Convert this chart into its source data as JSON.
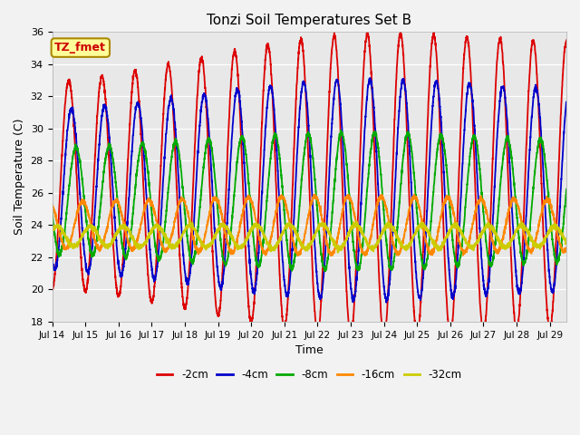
{
  "title": "Tonzi Soil Temperatures Set B",
  "xlabel": "Time",
  "ylabel": "Soil Temperature (C)",
  "ylim": [
    18,
    36
  ],
  "annotation": "TZ_fmet",
  "annotation_color": "#cc0000",
  "annotation_bg": "#ffff99",
  "annotation_border": "#aa8800",
  "plot_bg": "#e8e8e8",
  "fig_bg": "#f2f2f2",
  "legend_entries": [
    "-2cm",
    "-4cm",
    "-8cm",
    "-16cm",
    "-32cm"
  ],
  "line_colors": [
    "#dd0000",
    "#0000cc",
    "#00aa00",
    "#ff8800",
    "#cccc00"
  ],
  "x_tick_labels": [
    "Jul 14",
    "Jul 15",
    "Jul 16",
    "Jul 17",
    "Jul 18",
    "Jul 19",
    "Jul 20",
    "Jul 21",
    "Jul 22",
    "Jul 23",
    "Jul 24",
    "Jul 25",
    "Jul 26",
    "Jul 27",
    "Jul 28",
    "Jul 29"
  ],
  "n_points": 3600,
  "days": 15.5,
  "mean_2cm": 26.5,
  "mean_4cm": 26.2,
  "mean_8cm": 25.5,
  "mean_16cm": 24.0,
  "mean_32cm": 23.3,
  "amp_2cm": 6.2,
  "amp_4cm": 4.8,
  "amp_8cm": 3.2,
  "amp_16cm": 1.4,
  "amp_32cm": 0.6,
  "phase_4cm": 0.08,
  "phase_8cm": 0.22,
  "phase_16cm": 0.42,
  "phase_32cm": 0.65,
  "amp_growth_2cm": 0.18,
  "amp_growth_4cm": 0.12,
  "amp_growth_8cm": 0.06,
  "amp_growth_16cm": 0.03,
  "amp_growth_32cm": 0.005,
  "linewidth": 1.3
}
